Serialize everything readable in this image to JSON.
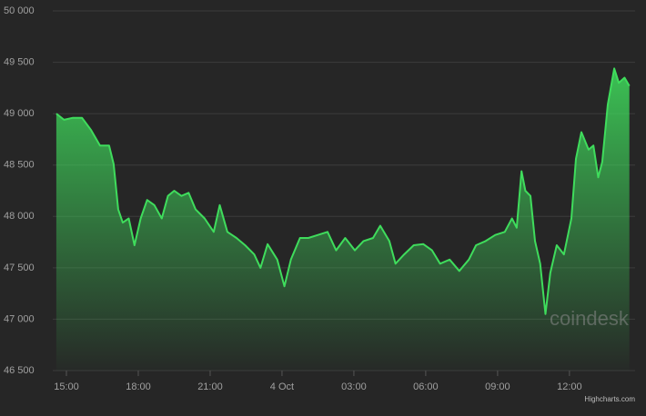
{
  "chart_data": {
    "type": "area",
    "xlim": [
      14.43,
      38.74
    ],
    "xticks": [
      {
        "value": 15,
        "label": "15:00"
      },
      {
        "value": 18,
        "label": "18:00"
      },
      {
        "value": 21,
        "label": "21:00"
      },
      {
        "value": 24,
        "label": "4 Oct"
      },
      {
        "value": 27,
        "label": "03:00"
      },
      {
        "value": 30,
        "label": "06:00"
      },
      {
        "value": 33,
        "label": "09:00"
      },
      {
        "value": 36,
        "label": "12:00"
      }
    ],
    "ylim": [
      46500,
      50000
    ],
    "yticks": [
      {
        "value": 46500,
        "label": "46 500"
      },
      {
        "value": 47000,
        "label": "47 000"
      },
      {
        "value": 47500,
        "label": "47 500"
      },
      {
        "value": 48000,
        "label": "48 000"
      },
      {
        "value": 48500,
        "label": "48 500"
      },
      {
        "value": 49000,
        "label": "49 000"
      },
      {
        "value": 49500,
        "label": "49 500"
      },
      {
        "value": 50000,
        "label": "50 000"
      }
    ],
    "grid": true,
    "x": [
      14.58,
      14.9,
      15.27,
      15.65,
      16.03,
      16.4,
      16.78,
      16.97,
      17.16,
      17.35,
      17.6,
      17.84,
      18.1,
      18.37,
      18.67,
      18.98,
      19.24,
      19.5,
      19.8,
      20.1,
      20.39,
      20.77,
      21.15,
      21.4,
      21.72,
      22.1,
      22.46,
      22.84,
      23.1,
      23.4,
      23.8,
      24.1,
      24.37,
      24.75,
      25.1,
      25.5,
      25.9,
      26.26,
      26.64,
      27.04,
      27.4,
      27.8,
      28.1,
      28.48,
      28.74,
      29.1,
      29.5,
      29.9,
      30.26,
      30.6,
      31.0,
      31.4,
      31.8,
      32.1,
      32.5,
      32.9,
      33.3,
      33.6,
      33.8,
      34.0,
      34.16,
      34.37,
      34.56,
      34.78,
      35.0,
      35.2,
      35.47,
      35.77,
      36.08,
      36.27,
      36.5,
      36.8,
      37.0,
      37.2,
      37.37,
      37.6,
      37.87,
      38.06,
      38.3,
      38.5
    ],
    "series": [
      {
        "color": "#3fdc5c",
        "values": [
          49000,
          48940,
          48960,
          48960,
          48840,
          48690,
          48690,
          48510,
          48070,
          47940,
          47980,
          47720,
          47980,
          48160,
          48110,
          47980,
          48200,
          48250,
          48200,
          48230,
          48070,
          47980,
          47850,
          48110,
          47850,
          47790,
          47720,
          47630,
          47500,
          47730,
          47580,
          47320,
          47580,
          47790,
          47790,
          47820,
          47850,
          47670,
          47790,
          47670,
          47760,
          47790,
          47910,
          47760,
          47540,
          47630,
          47720,
          47730,
          47670,
          47540,
          47580,
          47470,
          47580,
          47720,
          47760,
          47820,
          47850,
          47980,
          47890,
          48440,
          48250,
          48200,
          47760,
          47540,
          47050,
          47450,
          47720,
          47630,
          47980,
          48560,
          48820,
          48650,
          48690,
          48380,
          48530,
          49090,
          49440,
          49300,
          49350,
          49270
        ]
      }
    ],
    "watermark": "coindesk",
    "credits": "Highcharts.com"
  }
}
